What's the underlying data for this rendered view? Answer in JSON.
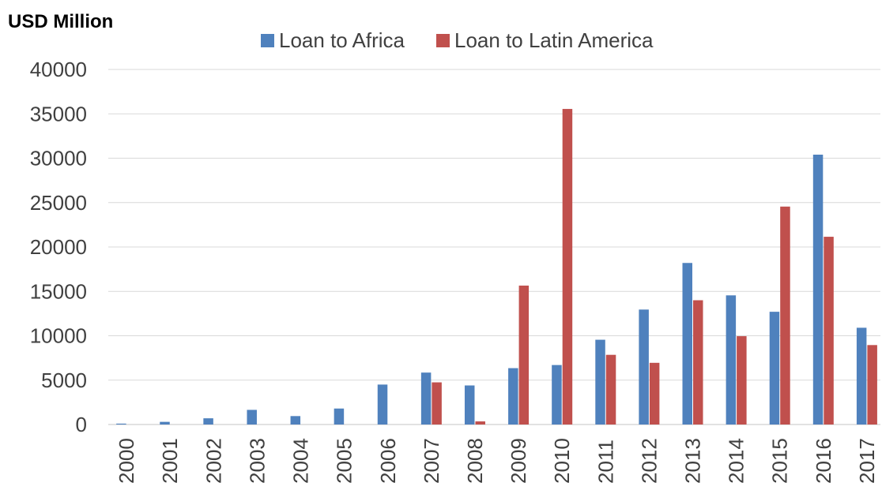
{
  "chart_data": {
    "type": "bar",
    "title": "",
    "ylabel": "USD Million",
    "xlabel": "",
    "ylim": [
      0,
      40000
    ],
    "yticks": [
      0,
      5000,
      10000,
      15000,
      20000,
      25000,
      30000,
      35000,
      40000
    ],
    "grid": true,
    "legend_position": "top",
    "categories": [
      "2000",
      "2001",
      "2002",
      "2003",
      "2004",
      "2005",
      "2006",
      "2007",
      "2008",
      "2009",
      "2010",
      "2011",
      "2012",
      "2013",
      "2014",
      "2015",
      "2016",
      "2017"
    ],
    "series": [
      {
        "name": "Loan to Africa",
        "color": "#4F81BD",
        "values": [
          100,
          300,
          700,
          1650,
          950,
          1800,
          4500,
          5850,
          4400,
          6350,
          6700,
          9550,
          12950,
          18200,
          14550,
          12700,
          30400,
          10900
        ]
      },
      {
        "name": "Loan to Latin America",
        "color": "#C0504D",
        "values": [
          0,
          0,
          0,
          0,
          0,
          0,
          0,
          4750,
          350,
          15650,
          35550,
          7850,
          6950,
          14000,
          9950,
          24550,
          21150,
          8950
        ]
      }
    ]
  }
}
